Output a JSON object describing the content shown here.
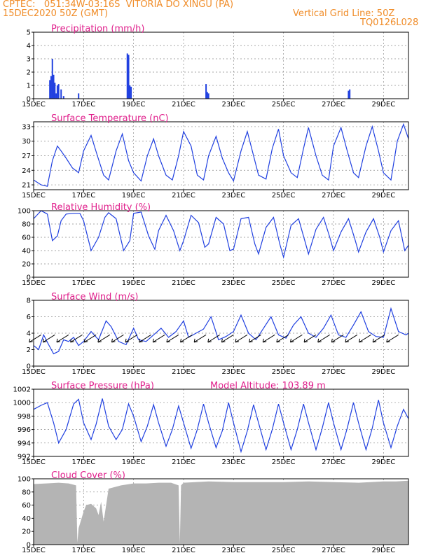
{
  "header": {
    "line1_left": "CPTEC:   051:34W-03:16S  VITORIA DO XINGU (PA)",
    "line2_left": "15DEC2020 50Z (GMT)",
    "line2_right": "Vertical Grid Line: 50Z",
    "line3_right": "TQ0126L028"
  },
  "colors": {
    "header": "#f08c28",
    "title": "#e0208c",
    "line": "#2040e0",
    "cloud": "#b4b4b4",
    "grid": "#8a8a8a"
  },
  "x_ticks": [
    "15DEC",
    "17DEC",
    "19DEC",
    "21DEC",
    "23DEC",
    "25DEC",
    "27DEC",
    "29DEC"
  ],
  "x_start_day": 15,
  "x_end_day": 30,
  "chart_data": [
    {
      "type": "bar",
      "title": "Precipitation (mm/h)",
      "ylim": [
        0,
        5
      ],
      "yticks": [
        0,
        1,
        2,
        3,
        4,
        5
      ],
      "x": [
        15.65,
        15.7,
        15.75,
        15.8,
        15.85,
        15.9,
        15.95,
        16.0,
        16.1,
        16.2,
        16.8,
        18.75,
        18.8,
        18.85,
        18.9,
        21.9,
        21.95,
        22.0,
        27.6,
        27.65
      ],
      "values": [
        1.4,
        1.7,
        3.0,
        1.8,
        1.2,
        0.4,
        1.0,
        1.1,
        0.7,
        0.2,
        0.4,
        3.4,
        3.3,
        1.0,
        0.9,
        1.1,
        0.5,
        0.4,
        0.6,
        0.7
      ]
    },
    {
      "type": "line",
      "title": "Surface Temperature (nC)",
      "ylim": [
        20,
        34
      ],
      "yticks": [
        21,
        24,
        27,
        30,
        33
      ],
      "x": [
        15.0,
        15.3,
        15.55,
        15.75,
        15.95,
        16.1,
        16.3,
        16.55,
        16.8,
        17.0,
        17.3,
        17.55,
        17.8,
        18.0,
        18.3,
        18.55,
        18.8,
        19.0,
        19.3,
        19.55,
        19.8,
        20.0,
        20.3,
        20.55,
        20.8,
        21.0,
        21.3,
        21.55,
        21.8,
        22.0,
        22.3,
        22.55,
        22.8,
        23.0,
        23.3,
        23.55,
        23.8,
        24.0,
        24.3,
        24.55,
        24.8,
        25.0,
        25.3,
        25.55,
        25.8,
        26.0,
        26.3,
        26.55,
        26.8,
        27.0,
        27.3,
        27.55,
        27.8,
        28.0,
        28.3,
        28.55,
        28.8,
        29.0,
        29.3,
        29.55,
        29.8,
        30.0
      ],
      "values": [
        22.0,
        21.0,
        20.7,
        26.0,
        29.0,
        28.0,
        26.5,
        24.5,
        23.5,
        28.0,
        31.2,
        27.0,
        23.0,
        22.0,
        28.0,
        31.5,
        26.0,
        23.5,
        21.8,
        27.0,
        30.5,
        27.0,
        23.0,
        22.0,
        27.0,
        32.0,
        29.0,
        23.0,
        22.0,
        27.0,
        31.0,
        26.5,
        23.5,
        21.8,
        28.0,
        32.0,
        27.0,
        23.0,
        22.2,
        28.5,
        32.5,
        27.0,
        23.5,
        22.5,
        28.5,
        32.8,
        27.0,
        23.0,
        22.0,
        29.0,
        32.8,
        28.0,
        23.5,
        22.5,
        29.0,
        33.0,
        28.0,
        23.5,
        22.0,
        30.0,
        33.5,
        30.5
      ]
    },
    {
      "type": "line",
      "title": "Relative Humidity (%)",
      "ylim": [
        0,
        100
      ],
      "yticks": [
        0,
        20,
        40,
        60,
        80,
        100
      ],
      "x": [
        15.0,
        15.3,
        15.55,
        15.75,
        15.95,
        16.1,
        16.3,
        16.6,
        16.85,
        17.0,
        17.3,
        17.6,
        17.85,
        18.0,
        18.3,
        18.6,
        18.85,
        19.0,
        19.3,
        19.6,
        19.85,
        20.0,
        20.3,
        20.6,
        20.85,
        21.0,
        21.3,
        21.6,
        21.85,
        22.0,
        22.3,
        22.6,
        22.85,
        23.0,
        23.3,
        23.6,
        23.85,
        24.0,
        24.3,
        24.6,
        24.85,
        25.0,
        25.3,
        25.6,
        25.85,
        26.0,
        26.3,
        26.6,
        26.85,
        27.0,
        27.3,
        27.6,
        27.85,
        28.0,
        28.3,
        28.6,
        28.85,
        29.0,
        29.3,
        29.6,
        29.85,
        30.0
      ],
      "values": [
        88,
        100,
        95,
        55,
        62,
        85,
        95,
        96,
        96,
        85,
        40,
        60,
        90,
        97,
        88,
        40,
        55,
        96,
        98,
        62,
        42,
        70,
        93,
        70,
        40,
        55,
        93,
        82,
        45,
        50,
        90,
        80,
        40,
        42,
        88,
        90,
        50,
        35,
        75,
        90,
        50,
        30,
        78,
        88,
        55,
        35,
        72,
        90,
        60,
        40,
        68,
        88,
        58,
        38,
        68,
        88,
        60,
        38,
        70,
        85,
        40,
        48
      ]
    },
    {
      "type": "line",
      "title": "Surface Wind (m/s)",
      "ylim": [
        0,
        8
      ],
      "yticks": [
        0,
        2,
        4,
        6,
        8
      ],
      "x": [
        15.0,
        15.2,
        15.4,
        15.6,
        15.8,
        16.0,
        16.2,
        16.4,
        16.6,
        16.8,
        17.0,
        17.3,
        17.6,
        17.9,
        18.1,
        18.4,
        18.7,
        19.0,
        19.2,
        19.5,
        19.8,
        20.1,
        20.4,
        20.7,
        21.0,
        21.2,
        21.5,
        21.8,
        22.1,
        22.4,
        22.7,
        23.0,
        23.3,
        23.6,
        23.9,
        24.2,
        24.5,
        24.8,
        25.1,
        25.4,
        25.7,
        26.0,
        26.3,
        26.6,
        26.9,
        27.2,
        27.5,
        27.8,
        28.1,
        28.4,
        28.7,
        29.0,
        29.3,
        29.6,
        29.9,
        30.0
      ],
      "values": [
        2.5,
        2.0,
        3.8,
        2.6,
        1.5,
        1.8,
        3.2,
        3.0,
        3.5,
        2.5,
        3.0,
        4.2,
        3.2,
        5.5,
        4.8,
        3.0,
        2.6,
        4.6,
        3.2,
        3.0,
        3.8,
        4.6,
        3.5,
        4.2,
        5.5,
        3.5,
        4.0,
        4.5,
        6.0,
        3.2,
        3.6,
        4.2,
        6.2,
        4.0,
        3.2,
        4.6,
        6.0,
        3.8,
        3.4,
        5.0,
        6.0,
        4.0,
        3.5,
        4.6,
        6.2,
        3.8,
        3.5,
        5.0,
        6.6,
        4.2,
        3.6,
        3.5,
        7.0,
        4.2,
        3.8,
        4.0
      ]
    },
    {
      "type": "line",
      "title": "Surface Pressure (hPa)",
      "annotation": "Model Altitude: 103.89 m",
      "ylim": [
        992,
        1002
      ],
      "yticks": [
        992,
        994,
        996,
        998,
        1000,
        1002
      ],
      "x": [
        15.0,
        15.3,
        15.55,
        15.8,
        16.0,
        16.3,
        16.6,
        16.8,
        17.0,
        17.3,
        17.5,
        17.75,
        18.0,
        18.3,
        18.55,
        18.8,
        19.0,
        19.3,
        19.55,
        19.8,
        20.0,
        20.3,
        20.55,
        20.8,
        21.0,
        21.3,
        21.55,
        21.8,
        22.0,
        22.3,
        22.55,
        22.8,
        23.0,
        23.3,
        23.55,
        23.8,
        24.0,
        24.3,
        24.55,
        24.8,
        25.0,
        25.3,
        25.55,
        25.8,
        26.0,
        26.3,
        26.55,
        26.8,
        27.0,
        27.3,
        27.55,
        27.8,
        28.0,
        28.3,
        28.55,
        28.8,
        29.0,
        29.3,
        29.55,
        29.8,
        30.0
      ],
      "values": [
        999.0,
        999.6,
        1000.0,
        997.0,
        994.0,
        996.0,
        999.8,
        1000.5,
        997.0,
        994.5,
        996.8,
        1000.6,
        996.5,
        994.5,
        996.0,
        999.8,
        998.0,
        994.2,
        996.5,
        999.7,
        997.0,
        993.5,
        996.0,
        999.5,
        997.0,
        993.2,
        996.0,
        999.8,
        997.0,
        993.3,
        995.8,
        1000.0,
        997.0,
        992.7,
        995.8,
        999.7,
        997.0,
        993.0,
        996.0,
        999.8,
        997.0,
        993.0,
        996.0,
        999.8,
        997.0,
        993.0,
        996.2,
        1000.0,
        997.0,
        993.0,
        996.2,
        1000.0,
        997.0,
        993.0,
        996.2,
        1000.4,
        997.0,
        993.3,
        996.5,
        999.0,
        997.6
      ]
    },
    {
      "type": "area",
      "title": "Cloud Cover (%)",
      "ylim": [
        0,
        100
      ],
      "yticks": [
        0,
        20,
        40,
        60,
        80,
        100
      ],
      "x": [
        15.0,
        15.5,
        16.0,
        16.4,
        16.7,
        16.75,
        16.8,
        17.0,
        17.1,
        17.3,
        17.5,
        17.6,
        17.7,
        17.8,
        18.0,
        18.5,
        19.0,
        19.5,
        20.0,
        20.5,
        20.8,
        20.85,
        20.9,
        21.0,
        22.0,
        23.0,
        24.0,
        25.0,
        26.0,
        27.0,
        28.0,
        29.0,
        29.5,
        30.0
      ],
      "values": [
        92,
        93,
        94,
        93,
        90,
        3,
        25,
        50,
        60,
        62,
        55,
        45,
        65,
        35,
        85,
        90,
        93,
        93,
        94,
        94,
        90,
        2,
        90,
        94,
        96,
        95,
        95,
        95,
        96,
        95,
        94,
        96,
        96,
        97
      ]
    }
  ]
}
